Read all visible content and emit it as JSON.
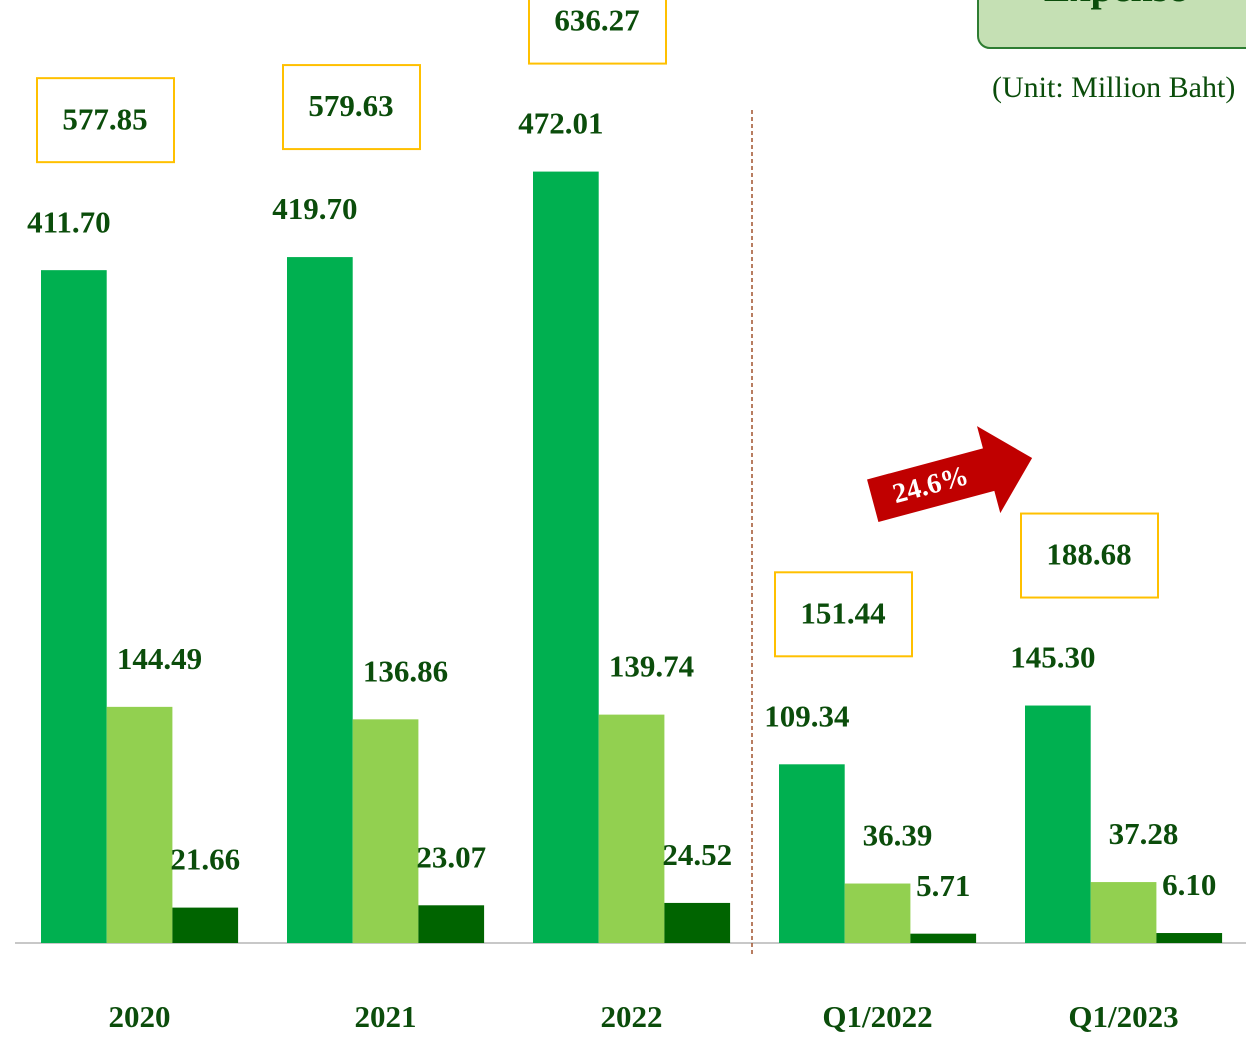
{
  "chart_data": {
    "type": "bar",
    "title": "Expense",
    "subtitle": "(Unit: Million Baht)",
    "categories": [
      "2020",
      "2021",
      "2022",
      "Q1/2022",
      "Q1/2023"
    ],
    "series": [
      {
        "color": "#00b050",
        "values": [
          411.7,
          419.7,
          472.01,
          109.34,
          145.3
        ],
        "value_labels": [
          "411.70",
          "419.70",
          "472.01",
          "109.34",
          "145.30"
        ]
      },
      {
        "color": "#92d050",
        "values": [
          144.49,
          136.86,
          139.74,
          36.39,
          37.28
        ],
        "value_labels": [
          "144.49",
          "136.86",
          "139.74",
          "36.39",
          "37.28"
        ]
      },
      {
        "color": "#006400",
        "values": [
          21.66,
          23.07,
          24.52,
          5.71,
          6.1
        ],
        "value_labels": [
          "21.66",
          "23.07",
          "24.52",
          "5.71",
          "6.10"
        ]
      }
    ],
    "totals": [
      577.85,
      579.63,
      636.27,
      151.44,
      188.68
    ],
    "annotation": "24.6%",
    "ylim": [
      0,
      577
    ]
  }
}
